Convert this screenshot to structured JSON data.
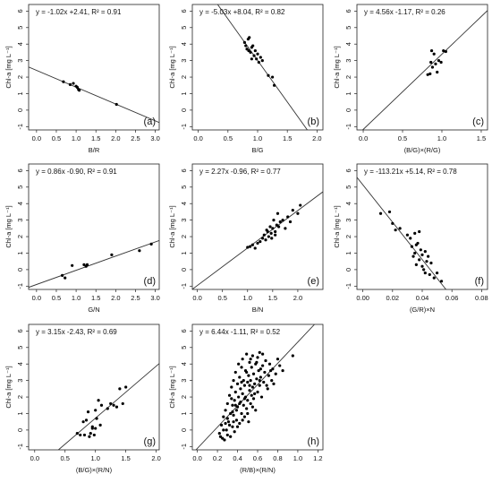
{
  "chart_data": [
    {
      "id": "a",
      "type": "scatter",
      "letter": "(a)",
      "equation": "y = -1.02x +2.41, R² = 0.91",
      "xlabel": "B/R",
      "ylabel": "Chl-a [mg L⁻¹]",
      "xlim": [
        -0.2,
        3.1
      ],
      "ylim": [
        -1.2,
        6.4
      ],
      "xticks": [
        0.0,
        0.5,
        1.0,
        1.5,
        2.0,
        2.5,
        3.0
      ],
      "xtick_labels": [
        "0.0",
        "0.5",
        "1.0",
        "1.5",
        "2.0",
        "2.5",
        "3.0"
      ],
      "yticks": [
        -1,
        0,
        1,
        2,
        3,
        4,
        5,
        6
      ],
      "ytick_labels": [
        "-1",
        "0",
        "1",
        "2",
        "3",
        "4",
        "5",
        "6"
      ],
      "fit": {
        "slope": -1.02,
        "intercept": 2.41
      },
      "points": [
        [
          0.68,
          1.72
        ],
        [
          0.85,
          1.55
        ],
        [
          0.93,
          1.62
        ],
        [
          1.0,
          1.45
        ],
        [
          1.03,
          1.38
        ],
        [
          1.06,
          1.25
        ],
        [
          1.08,
          1.2
        ],
        [
          2.02,
          0.35
        ]
      ]
    },
    {
      "id": "b",
      "type": "scatter",
      "letter": "(b)",
      "equation": "y = -5.03x +8.04, R² = 0.82",
      "xlabel": "B/G",
      "ylabel": "Chl-a [mg L⁻¹]",
      "xlim": [
        -0.1,
        2.1
      ],
      "ylim": [
        -1.2,
        6.4
      ],
      "xticks": [
        0.0,
        0.5,
        1.0,
        1.5,
        2.0
      ],
      "xtick_labels": [
        "0.0",
        "0.5",
        "1.0",
        "1.5",
        "2.0"
      ],
      "yticks": [
        -1,
        0,
        1,
        2,
        3,
        4,
        5,
        6
      ],
      "ytick_labels": [
        "-1",
        "0",
        "1",
        "2",
        "3",
        "4",
        "5",
        "6"
      ],
      "fit": {
        "slope": -5.03,
        "intercept": 8.04
      },
      "points": [
        [
          0.78,
          4.1
        ],
        [
          0.8,
          3.9
        ],
        [
          0.82,
          3.7
        ],
        [
          0.84,
          4.3
        ],
        [
          0.86,
          4.4
        ],
        [
          0.88,
          3.5
        ],
        [
          0.9,
          3.8
        ],
        [
          0.92,
          3.9
        ],
        [
          0.94,
          3.3
        ],
        [
          0.96,
          3.6
        ],
        [
          0.98,
          3.1
        ],
        [
          1.0,
          3.4
        ],
        [
          1.02,
          2.9
        ],
        [
          1.05,
          3.2
        ],
        [
          1.08,
          3.0
        ],
        [
          1.18,
          2.1
        ],
        [
          1.25,
          2.0
        ],
        [
          1.28,
          1.5
        ],
        [
          0.85,
          3.6
        ],
        [
          0.9,
          3.1
        ]
      ]
    },
    {
      "id": "c",
      "type": "scatter",
      "letter": "(c)",
      "equation": "y = 4.56x -1.17, R² = 0.26",
      "xlabel": "(B/G)×(R/G)",
      "ylabel": "Chl-a [mg L⁻¹]",
      "xlim": [
        -0.08,
        1.58
      ],
      "ylim": [
        -1.2,
        6.4
      ],
      "xticks": [
        0.0,
        0.5,
        1.0,
        1.5
      ],
      "xtick_labels": [
        "0.0",
        "0.5",
        "1.0",
        "1.5"
      ],
      "yticks": [
        -1,
        0,
        1,
        2,
        3,
        4,
        5,
        6
      ],
      "ytick_labels": [
        "-1",
        "0",
        "1",
        "2",
        "3",
        "4",
        "5",
        "6"
      ],
      "fit": {
        "slope": 4.56,
        "intercept": -1.17
      },
      "points": [
        [
          0.82,
          2.15
        ],
        [
          0.85,
          2.2
        ],
        [
          0.87,
          3.6
        ],
        [
          0.88,
          2.6
        ],
        [
          0.9,
          3.4
        ],
        [
          0.92,
          2.8
        ],
        [
          0.94,
          2.3
        ],
        [
          0.96,
          3.0
        ],
        [
          0.99,
          2.9
        ],
        [
          1.02,
          3.6
        ],
        [
          1.05,
          3.55
        ],
        [
          0.86,
          2.9
        ]
      ]
    },
    {
      "id": "d",
      "type": "scatter",
      "letter": "(d)",
      "equation": "y = 0.86x -0.90, R² = 0.91",
      "xlabel": "G/N",
      "ylabel": "Chl-a [mg L⁻¹]",
      "xlim": [
        -0.2,
        3.1
      ],
      "ylim": [
        -1.2,
        6.4
      ],
      "xticks": [
        0.0,
        0.5,
        1.0,
        1.5,
        2.0,
        2.5,
        3.0
      ],
      "xtick_labels": [
        "0.0",
        "0.5",
        "1.0",
        "1.5",
        "2.0",
        "2.5",
        "3.0"
      ],
      "yticks": [
        -1,
        0,
        1,
        2,
        3,
        4,
        5,
        6
      ],
      "ytick_labels": [
        "-1",
        "0",
        "1",
        "2",
        "3",
        "4",
        "5",
        "6"
      ],
      "fit": {
        "slope": 0.86,
        "intercept": -0.9
      },
      "points": [
        [
          0.65,
          -0.35
        ],
        [
          0.72,
          -0.5
        ],
        [
          0.9,
          0.25
        ],
        [
          1.2,
          0.3
        ],
        [
          1.25,
          0.2
        ],
        [
          1.28,
          0.3
        ],
        [
          1.9,
          0.9
        ],
        [
          2.6,
          1.15
        ],
        [
          2.9,
          1.55
        ]
      ]
    },
    {
      "id": "e",
      "type": "scatter",
      "letter": "(e)",
      "equation": "y = 2.27x -0.96, R² = 0.77",
      "xlabel": "B/N",
      "ylabel": "Chl-a [mg L⁻¹]",
      "xlim": [
        -0.1,
        2.5
      ],
      "ylim": [
        -1.2,
        6.4
      ],
      "xticks": [
        0.0,
        0.5,
        1.0,
        1.5,
        2.0
      ],
      "xtick_labels": [
        "0.0",
        "0.5",
        "1.0",
        "1.5",
        "2.0"
      ],
      "yticks": [
        -1,
        0,
        1,
        2,
        3,
        4,
        5,
        6
      ],
      "ytick_labels": [
        "-1",
        "0",
        "1",
        "2",
        "3",
        "4",
        "5",
        "6"
      ],
      "fit": {
        "slope": 2.27,
        "intercept": -0.96
      },
      "points": [
        [
          1.0,
          1.35
        ],
        [
          1.05,
          1.4
        ],
        [
          1.1,
          1.5
        ],
        [
          1.15,
          1.3
        ],
        [
          1.2,
          1.6
        ],
        [
          1.25,
          1.7
        ],
        [
          1.3,
          1.9
        ],
        [
          1.33,
          2.1
        ],
        [
          1.36,
          1.8
        ],
        [
          1.4,
          2.3
        ],
        [
          1.42,
          2.0
        ],
        [
          1.45,
          2.6
        ],
        [
          1.47,
          2.2
        ],
        [
          1.5,
          2.5
        ],
        [
          1.52,
          3.0
        ],
        [
          1.55,
          2.1
        ],
        [
          1.58,
          2.7
        ],
        [
          1.6,
          3.4
        ],
        [
          1.62,
          2.6
        ],
        [
          1.65,
          2.9
        ],
        [
          1.7,
          3.0
        ],
        [
          1.75,
          2.5
        ],
        [
          1.8,
          3.2
        ],
        [
          1.85,
          2.9
        ],
        [
          1.9,
          3.6
        ],
        [
          2.0,
          3.4
        ],
        [
          2.05,
          3.9
        ],
        [
          1.55,
          2.3
        ],
        [
          1.48,
          1.9
        ],
        [
          1.38,
          2.4
        ]
      ]
    },
    {
      "id": "f",
      "type": "scatter",
      "letter": "(f)",
      "equation": "y = -113.21x +5.14, R² = 0.78",
      "xlabel": "(G/R)×N",
      "ylabel": "Chl-a [mg L⁻¹]",
      "xlim": [
        -0.004,
        0.084
      ],
      "ylim": [
        -1.2,
        6.4
      ],
      "xticks": [
        0.0,
        0.02,
        0.04,
        0.06,
        0.08
      ],
      "xtick_labels": [
        "0.00",
        "0.02",
        "0.04",
        "0.06",
        "0.08"
      ],
      "yticks": [
        -1,
        0,
        1,
        2,
        3,
        4,
        5,
        6
      ],
      "ytick_labels": [
        "-1",
        "0",
        "1",
        "2",
        "3",
        "4",
        "5",
        "6"
      ],
      "fit": {
        "slope": -113.21,
        "intercept": 5.14
      },
      "points": [
        [
          0.012,
          3.4
        ],
        [
          0.018,
          3.5
        ],
        [
          0.02,
          2.8
        ],
        [
          0.022,
          2.4
        ],
        [
          0.025,
          2.5
        ],
        [
          0.03,
          2.1
        ],
        [
          0.032,
          1.9
        ],
        [
          0.033,
          1.4
        ],
        [
          0.035,
          2.2
        ],
        [
          0.035,
          1.0
        ],
        [
          0.036,
          0.3
        ],
        [
          0.037,
          1.6
        ],
        [
          0.038,
          2.3
        ],
        [
          0.038,
          0.6
        ],
        [
          0.039,
          1.2
        ],
        [
          0.04,
          0.2
        ],
        [
          0.04,
          0.9
        ],
        [
          0.041,
          0.0
        ],
        [
          0.042,
          -0.2
        ],
        [
          0.042,
          1.1
        ],
        [
          0.043,
          0.5
        ],
        [
          0.044,
          0.8
        ],
        [
          0.045,
          -0.3
        ],
        [
          0.046,
          0.4
        ],
        [
          0.048,
          -0.5
        ],
        [
          0.05,
          -0.2
        ],
        [
          0.053,
          -0.7
        ],
        [
          0.036,
          1.5
        ],
        [
          0.034,
          0.8
        ]
      ]
    },
    {
      "id": "g",
      "type": "scatter",
      "letter": "(g)",
      "equation": "y = 3.15x -2.43, R² = 0.69",
      "xlabel": "(B/G)×(R/N)",
      "ylabel": "Chl-a [mg L⁻¹]",
      "xlim": [
        -0.1,
        2.05
      ],
      "ylim": [
        -1.2,
        6.4
      ],
      "xticks": [
        0.0,
        0.5,
        1.0,
        1.5,
        2.0
      ],
      "xtick_labels": [
        "0.0",
        "0.5",
        "1.0",
        "1.5",
        "2.0"
      ],
      "yticks": [
        -1,
        0,
        1,
        2,
        3,
        4,
        5,
        6
      ],
      "ytick_labels": [
        "-1",
        "0",
        "1",
        "2",
        "3",
        "4",
        "5",
        "6"
      ],
      "fit": {
        "slope": 3.15,
        "intercept": -2.43
      },
      "points": [
        [
          0.7,
          -0.2
        ],
        [
          0.75,
          -0.3
        ],
        [
          0.8,
          0.5
        ],
        [
          0.82,
          -0.3
        ],
        [
          0.85,
          0.6
        ],
        [
          0.88,
          1.1
        ],
        [
          0.9,
          -0.4
        ],
        [
          0.92,
          -0.2
        ],
        [
          0.95,
          0.1
        ],
        [
          0.98,
          -0.3
        ],
        [
          1.0,
          1.2
        ],
        [
          1.02,
          0.7
        ],
        [
          1.05,
          1.8
        ],
        [
          1.08,
          0.3
        ],
        [
          1.1,
          1.5
        ],
        [
          1.2,
          1.3
        ],
        [
          1.25,
          1.6
        ],
        [
          1.3,
          1.5
        ],
        [
          1.35,
          1.4
        ],
        [
          1.4,
          2.5
        ],
        [
          1.45,
          1.6
        ],
        [
          1.5,
          2.6
        ],
        [
          1.0,
          0.1
        ],
        [
          0.95,
          0.2
        ]
      ]
    },
    {
      "id": "h",
      "type": "scatter",
      "letter": "(h)",
      "equation": "y = 6.44x -1.11, R² = 0.52",
      "xlabel": "(R/B)×(R/N)",
      "ylabel": "Chl-a [mg L⁻¹]",
      "xlim": [
        -0.05,
        1.25
      ],
      "ylim": [
        -1.2,
        6.4
      ],
      "xticks": [
        0.0,
        0.2,
        0.4,
        0.6,
        0.8,
        1.0,
        1.2
      ],
      "xtick_labels": [
        "0.0",
        "0.2",
        "0.4",
        "0.6",
        "0.8",
        "1.0",
        "1.2"
      ],
      "yticks": [
        -1,
        0,
        1,
        2,
        3,
        4,
        5,
        6
      ],
      "ytick_labels": [
        "-1",
        "0",
        "1",
        "2",
        "3",
        "4",
        "5",
        "6"
      ],
      "fit": {
        "slope": 6.44,
        "intercept": -1.11
      },
      "points": [
        [
          0.22,
          -0.2
        ],
        [
          0.24,
          0.3
        ],
        [
          0.25,
          -0.5
        ],
        [
          0.26,
          0.8
        ],
        [
          0.27,
          -0.6
        ],
        [
          0.28,
          1.2
        ],
        [
          0.29,
          0.0
        ],
        [
          0.3,
          1.6
        ],
        [
          0.3,
          -0.3
        ],
        [
          0.31,
          0.5
        ],
        [
          0.32,
          2.1
        ],
        [
          0.33,
          1.0
        ],
        [
          0.33,
          -0.4
        ],
        [
          0.34,
          2.6
        ],
        [
          0.35,
          0.2
        ],
        [
          0.35,
          1.5
        ],
        [
          0.36,
          3.0
        ],
        [
          0.36,
          0.9
        ],
        [
          0.37,
          1.8
        ],
        [
          0.37,
          -0.1
        ],
        [
          0.38,
          2.3
        ],
        [
          0.38,
          3.5
        ],
        [
          0.39,
          1.2
        ],
        [
          0.39,
          0.6
        ],
        [
          0.4,
          2.8
        ],
        [
          0.4,
          1.4
        ],
        [
          0.41,
          4.0
        ],
        [
          0.41,
          2.0
        ],
        [
          0.42,
          3.2
        ],
        [
          0.42,
          0.4
        ],
        [
          0.43,
          1.7
        ],
        [
          0.43,
          2.5
        ],
        [
          0.44,
          3.8
        ],
        [
          0.44,
          1.0
        ],
        [
          0.45,
          2.2
        ],
        [
          0.45,
          4.3
        ],
        [
          0.46,
          1.5
        ],
        [
          0.46,
          3.0
        ],
        [
          0.47,
          2.7
        ],
        [
          0.47,
          0.8
        ],
        [
          0.48,
          3.6
        ],
        [
          0.48,
          2.0
        ],
        [
          0.49,
          1.3
        ],
        [
          0.49,
          4.6
        ],
        [
          0.5,
          2.9
        ],
        [
          0.5,
          1.8
        ],
        [
          0.51,
          3.3
        ],
        [
          0.51,
          0.5
        ],
        [
          0.52,
          2.4
        ],
        [
          0.52,
          4.1
        ],
        [
          0.53,
          3.0
        ],
        [
          0.53,
          1.6
        ],
        [
          0.54,
          2.1
        ],
        [
          0.54,
          3.8
        ],
        [
          0.55,
          2.6
        ],
        [
          0.55,
          4.5
        ],
        [
          0.56,
          1.9
        ],
        [
          0.56,
          3.4
        ],
        [
          0.57,
          2.8
        ],
        [
          0.58,
          4.0
        ],
        [
          0.58,
          1.2
        ],
        [
          0.59,
          3.1
        ],
        [
          0.6,
          2.3
        ],
        [
          0.6,
          4.4
        ],
        [
          0.61,
          3.6
        ],
        [
          0.62,
          2.7
        ],
        [
          0.62,
          4.7
        ],
        [
          0.63,
          3.2
        ],
        [
          0.64,
          2.0
        ],
        [
          0.65,
          3.9
        ],
        [
          0.65,
          4.6
        ],
        [
          0.66,
          2.9
        ],
        [
          0.67,
          3.5
        ],
        [
          0.68,
          4.2
        ],
        [
          0.7,
          2.5
        ],
        [
          0.71,
          3.3
        ],
        [
          0.72,
          4.0
        ],
        [
          0.74,
          3.0
        ],
        [
          0.75,
          3.7
        ],
        [
          0.76,
          2.8
        ],
        [
          0.78,
          3.4
        ],
        [
          0.8,
          4.3
        ],
        [
          0.82,
          3.9
        ],
        [
          0.85,
          3.6
        ],
        [
          0.95,
          4.5
        ],
        [
          0.35,
          1.1
        ],
        [
          0.4,
          0.2
        ],
        [
          0.45,
          0.6
        ],
        [
          0.5,
          1.0
        ],
        [
          0.55,
          1.4
        ],
        [
          0.3,
          0.7
        ],
        [
          0.28,
          0.4
        ],
        [
          0.42,
          1.6
        ],
        [
          0.47,
          1.9
        ],
        [
          0.52,
          2.7
        ],
        [
          0.57,
          2.2
        ],
        [
          0.62,
          3.0
        ],
        [
          0.34,
          1.9
        ],
        [
          0.38,
          1.5
        ],
        [
          0.44,
          2.9
        ],
        [
          0.49,
          3.5
        ],
        [
          0.53,
          4.3
        ],
        [
          0.59,
          4.1
        ],
        [
          0.63,
          3.7
        ],
        [
          0.69,
          2.7
        ],
        [
          0.73,
          3.6
        ],
        [
          0.26,
          0.0
        ],
        [
          0.23,
          -0.4
        ],
        [
          0.32,
          0.3
        ],
        [
          0.36,
          0.5
        ]
      ]
    }
  ]
}
